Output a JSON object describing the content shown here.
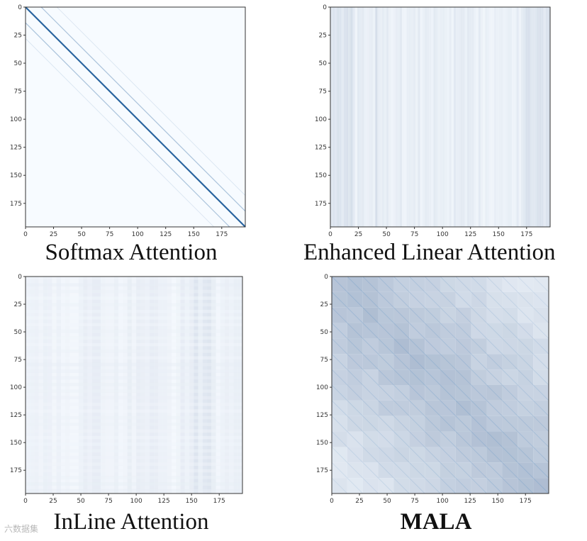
{
  "chart_data": [
    {
      "type": "heatmap",
      "title": "Softmax Attention",
      "pattern": "softmax",
      "xticks": [
        0,
        25,
        50,
        75,
        100,
        125,
        150,
        175
      ],
      "yticks": [
        0,
        25,
        50,
        75,
        100,
        125,
        150,
        175
      ],
      "xlim": [
        0,
        196
      ],
      "ylim": [
        196,
        0
      ],
      "colormap": [
        "#f7fbff",
        "#08306b"
      ]
    },
    {
      "type": "heatmap",
      "title": "Enhanced Linear Attention",
      "pattern": "enhanced",
      "xticks": [
        0,
        25,
        50,
        75,
        100,
        125,
        150,
        175
      ],
      "yticks": [
        0,
        25,
        50,
        75,
        100,
        125,
        150,
        175
      ],
      "xlim": [
        0,
        196
      ],
      "ylim": [
        196,
        0
      ],
      "colormap": [
        "#f7fbff",
        "#08306b"
      ]
    },
    {
      "type": "heatmap",
      "title": "InLine Attention",
      "pattern": "inline",
      "xticks": [
        0,
        25,
        50,
        75,
        100,
        125,
        150,
        175
      ],
      "yticks": [
        0,
        25,
        50,
        75,
        100,
        125,
        150,
        175
      ],
      "xlim": [
        0,
        196
      ],
      "ylim": [
        196,
        0
      ],
      "colormap": [
        "#f7fbff",
        "#08306b"
      ]
    },
    {
      "type": "heatmap",
      "title": "MALA",
      "title_bold": true,
      "pattern": "mala",
      "xticks": [
        0,
        25,
        50,
        75,
        100,
        125,
        150,
        175
      ],
      "yticks": [
        0,
        25,
        50,
        75,
        100,
        125,
        150,
        175
      ],
      "xlim": [
        0,
        196
      ],
      "ylim": [
        196,
        0
      ],
      "colormap": [
        "#f7fbff",
        "#08306b"
      ]
    }
  ],
  "watermark": "六数据集"
}
